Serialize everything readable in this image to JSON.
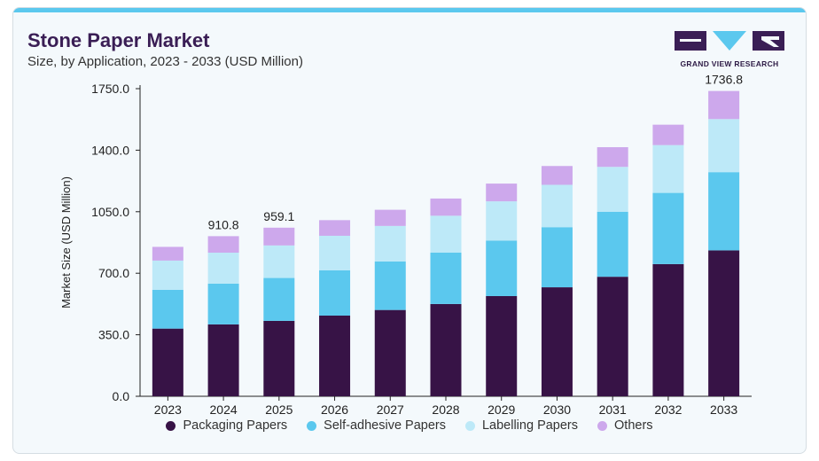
{
  "header": {
    "title": "Stone Paper Market",
    "subtitle": "Size, by Application, 2023 - 2033 (USD Million)"
  },
  "brand": {
    "name": "GRAND VIEW RESEARCH",
    "colors": {
      "dark": "#3a1e55",
      "light": "#5bc8ee"
    }
  },
  "chart_data": {
    "type": "bar",
    "stacked": true,
    "title": "Stone Paper Market",
    "subtitle": "Size, by Application, 2023 - 2033 (USD Million)",
    "xlabel": "",
    "ylabel": "Market Size (USD Million)",
    "ylim": [
      0,
      1750
    ],
    "yticks": [
      "0.0",
      "350.0",
      "700.0",
      "1050.0",
      "1400.0",
      "1750.0"
    ],
    "categories": [
      "2023",
      "2024",
      "2025",
      "2026",
      "2027",
      "2028",
      "2029",
      "2030",
      "2031",
      "2032",
      "2033"
    ],
    "series": [
      {
        "name": "Packaging Papers",
        "color": "#371346",
        "values": [
          385,
          409,
          429,
          459,
          491,
          525,
          570,
          620,
          680,
          752,
          830
        ]
      },
      {
        "name": "Self-adhesive Papers",
        "color": "#5bc8ee",
        "values": [
          221,
          232,
          244,
          258,
          276,
          292,
          316,
          342,
          370,
          405,
          445
        ]
      },
      {
        "name": "Labelling Papers",
        "color": "#bde9f8",
        "values": [
          166,
          176,
          185,
          196,
          202,
          210,
          223,
          241,
          255,
          272,
          302
        ]
      },
      {
        "name": "Others",
        "color": "#cda8ec",
        "values": [
          78,
          93.8,
          101.1,
          89,
          92,
          98,
          101,
          107,
          112,
          116,
          159.8
        ]
      }
    ],
    "data_labels": [
      {
        "category": "2024",
        "text": "910.8"
      },
      {
        "category": "2025",
        "text": "959.1"
      },
      {
        "category": "2033",
        "text": "1736.8"
      }
    ],
    "legend_position": "bottom",
    "grid": false
  }
}
